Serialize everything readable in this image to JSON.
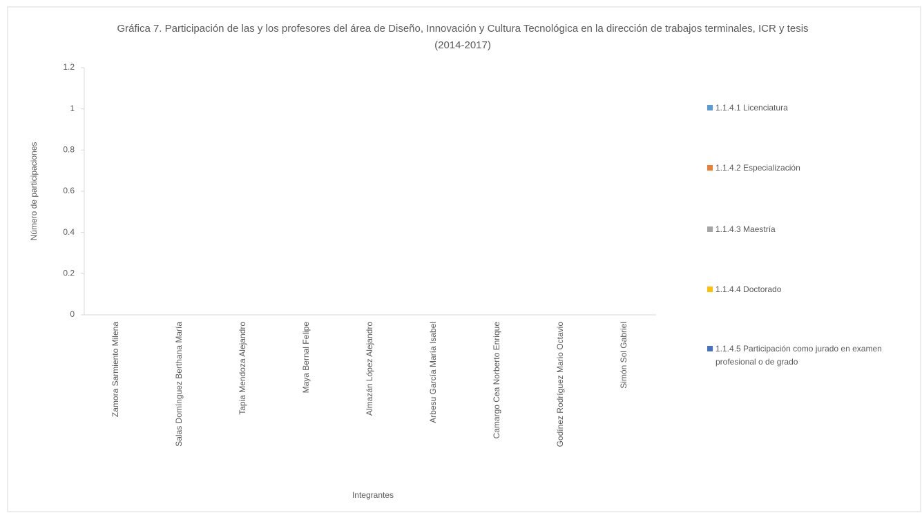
{
  "chart_data": {
    "type": "bar",
    "title": "Gráfica 7. Participación de las y los profesores del área de Diseño, Innovación y Cultura Tecnológica en la dirección de trabajos terminales, ICR y tesis (2014-2017)",
    "x_label": "Integrantes",
    "y_label": "Número de participaciones",
    "categories": [
      "Zamora Sarmiento Milena",
      "Salas Domínguez Berthana María",
      "Tapia Mendoza Alejandro",
      "Maya Bernal Felipe",
      "Almazán López Alejandro",
      "Arbesu García María Isabel",
      "Camargo Cea Norberto Enrique",
      "Godínez Rodríguez Mario Octavio",
      "Simón Sol Gabriel"
    ],
    "series": [
      {
        "name": "1.1.4.1 Licenciatura",
        "color": "#5b9bd5",
        "values": [
          0,
          0,
          0,
          0,
          0,
          0,
          0,
          0,
          0
        ]
      },
      {
        "name": "1.1.4.2 Especialización",
        "color": "#ed7d31",
        "values": [
          0,
          0,
          0,
          0,
          0,
          0,
          0,
          0,
          0
        ]
      },
      {
        "name": "1.1.4.3 Maestría",
        "color": "#a5a5a5",
        "values": [
          0,
          0,
          0,
          0,
          0,
          0,
          0,
          0,
          0
        ]
      },
      {
        "name": "1.1.4.4 Doctorado",
        "color": "#ffc000",
        "values": [
          0,
          0,
          0,
          0,
          0,
          0,
          0,
          0,
          0
        ]
      },
      {
        "name": "1.1.4.5 Participación como jurado en examen profesional o de grado",
        "color": "#4472c4",
        "values": [
          0,
          0,
          0,
          0,
          0,
          0,
          0,
          0,
          0
        ]
      }
    ],
    "ylim": [
      0,
      1.2
    ],
    "yticks": [
      0,
      0.2,
      0.4,
      0.6,
      0.8,
      1,
      1.2
    ],
    "grid": false,
    "legend": "right"
  }
}
